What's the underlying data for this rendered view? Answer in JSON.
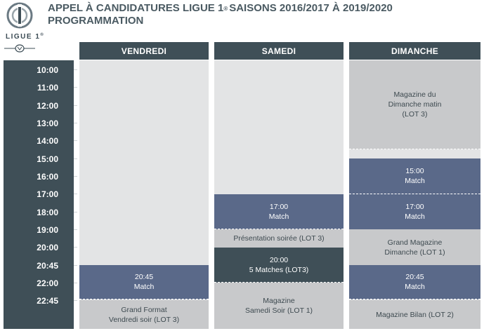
{
  "header": {
    "title_part1": "APPEL À CANDIDATURES LIGUE 1",
    "title_sup": "®",
    "title_part2": "SAISONS 2016/2017 À 2019/2020",
    "subtitle": "PROGRAMMATION",
    "logo_text": "LIGUE 1",
    "logo_sup": "®"
  },
  "times": [
    "10:00",
    "11:00",
    "12:00",
    "13:00",
    "14:00",
    "15:00",
    "16:00",
    "17:00",
    "18:00",
    "19:00",
    "20:00",
    "20:45",
    "22:00",
    "22:45"
  ],
  "days": {
    "vendredi": {
      "label": "VENDREDI",
      "blocks": [
        {
          "text": "20:45\nMatch"
        },
        {
          "text": "Grand Format\nVendredi soir (LOT 3)"
        }
      ]
    },
    "samedi": {
      "label": "SAMEDI",
      "blocks": [
        {
          "text": "17:00\nMatch"
        },
        {
          "text": "Présentation soirée (LOT 3)"
        },
        {
          "text": "20:00\n5 Matches (LOT3)"
        },
        {
          "text": "Magazine\nSamedi Soir (LOT 1)"
        }
      ]
    },
    "dimanche": {
      "label": "DIMANCHE",
      "blocks": [
        {
          "text": "Magazine du\nDimanche matin\n(LOT 3)"
        },
        {
          "text": "15:00\nMatch"
        },
        {
          "text": "17:00\nMatch"
        },
        {
          "text": "Grand Magazine\nDimanche (LOT 1)"
        },
        {
          "text": "20:45\nMatch"
        },
        {
          "text": "Magazine Bilan (LOT 2)"
        }
      ]
    }
  },
  "colors": {
    "dark_slate": "#3f4f57",
    "match_blue": "#5a6989",
    "magazine_grey": "#c8c9cb",
    "empty_grey": "#e3e4e5",
    "title_grey": "#4a5a62"
  }
}
